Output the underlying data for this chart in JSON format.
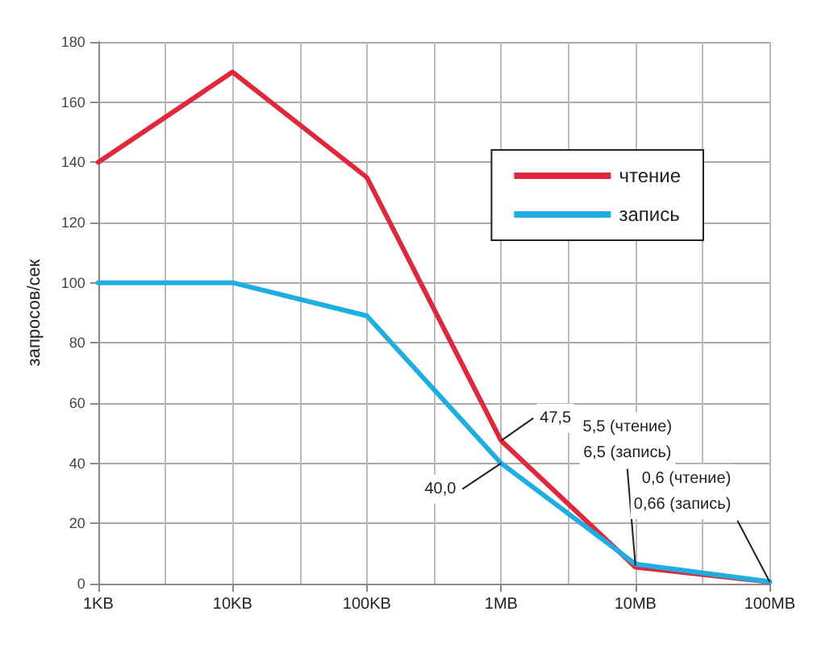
{
  "chart_data": {
    "type": "line",
    "ylabel": "запросов/сек",
    "categories": [
      "1KB",
      "10KB",
      "100KB",
      "1MB",
      "10MB",
      "100MB"
    ],
    "series": [
      {
        "name": "чтение",
        "color": "#e0283c",
        "values": [
          140,
          170,
          135,
          47.5,
          5.5,
          0.6
        ]
      },
      {
        "name": "запись",
        "color": "#1eaee0",
        "values": [
          100,
          100,
          89,
          40,
          6.5,
          0.66
        ]
      }
    ],
    "ylim": [
      0,
      180
    ],
    "yticks": [
      0,
      20,
      40,
      60,
      80,
      100,
      120,
      140,
      160,
      180
    ],
    "grid": true,
    "legend": "top right",
    "marker": "none",
    "line_style": "solid",
    "annotations": [
      {
        "text": "47,5",
        "x": "1MB",
        "y": 47.5
      },
      {
        "text": "40,0",
        "x": "1MB",
        "y": 40
      },
      {
        "text": "5,5 (чтение)\n6,5 (запись)",
        "x": "10MB",
        "y": 6
      },
      {
        "text": "0,6 (чтение)\n0,66 (запись)",
        "x": "100MB",
        "y": 0.6
      }
    ]
  }
}
